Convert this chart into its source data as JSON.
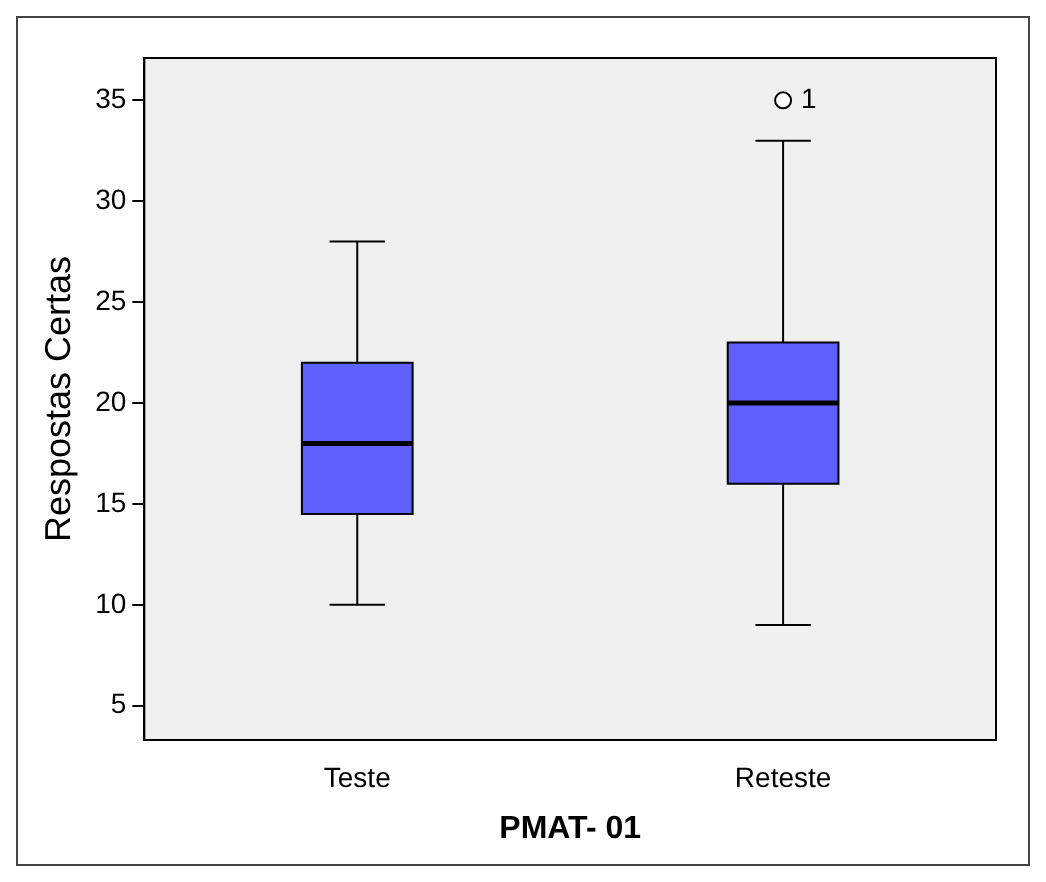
{
  "chart_data": {
    "type": "box",
    "xlabel": "PMAT- 01",
    "ylabel": "Respostas Certas",
    "categories": [
      "Teste",
      "Reteste"
    ],
    "boxes": [
      {
        "low": 10,
        "q1": 14.5,
        "median": 18,
        "q3": 22,
        "high": 28
      },
      {
        "low": 9,
        "q1": 16,
        "median": 20,
        "q3": 23,
        "high": 33,
        "outliers": [
          35
        ]
      }
    ],
    "color": "#6060ff",
    "ylim": [
      3.3,
      37.1
    ],
    "yticks": [
      5,
      10,
      15,
      20,
      25,
      30,
      35
    ],
    "grid": false,
    "legend": false,
    "annotations": [
      "1"
    ]
  }
}
